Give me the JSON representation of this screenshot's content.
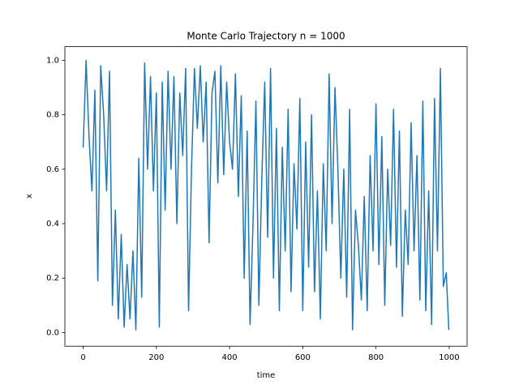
{
  "chart_data": {
    "type": "line",
    "title": "Monte Carlo Trajectory n = 1000",
    "x_label": "time",
    "y_label": "x",
    "x": [
      0,
      8,
      16,
      24,
      32,
      40,
      48,
      56,
      64,
      72,
      80,
      88,
      96,
      104,
      112,
      120,
      128,
      136,
      144,
      152,
      160,
      168,
      176,
      184,
      192,
      200,
      208,
      216,
      224,
      232,
      240,
      248,
      256,
      264,
      272,
      280,
      288,
      296,
      304,
      312,
      320,
      328,
      336,
      344,
      352,
      360,
      368,
      376,
      384,
      392,
      400,
      408,
      416,
      424,
      432,
      440,
      448,
      456,
      464,
      472,
      480,
      488,
      496,
      504,
      512,
      520,
      528,
      536,
      544,
      552,
      560,
      568,
      576,
      584,
      592,
      600,
      608,
      616,
      624,
      632,
      640,
      648,
      656,
      664,
      672,
      680,
      688,
      696,
      704,
      712,
      720,
      728,
      736,
      744,
      752,
      760,
      768,
      776,
      784,
      792,
      800,
      808,
      816,
      824,
      832,
      840,
      848,
      856,
      864,
      872,
      880,
      888,
      896,
      904,
      912,
      920,
      928,
      936,
      944,
      952,
      960,
      968,
      976,
      984,
      992,
      999
    ],
    "series": [
      {
        "color": "#1f77b4",
        "values": [
          0.68,
          1.0,
          0.72,
          0.52,
          0.89,
          0.19,
          0.98,
          0.8,
          0.52,
          0.96,
          0.1,
          0.45,
          0.05,
          0.36,
          0.02,
          0.25,
          0.05,
          0.3,
          0.01,
          0.64,
          0.13,
          0.99,
          0.6,
          0.94,
          0.52,
          0.88,
          0.02,
          0.92,
          0.45,
          0.96,
          0.6,
          0.94,
          0.4,
          0.88,
          0.65,
          0.97,
          0.08,
          0.6,
          0.97,
          0.75,
          0.98,
          0.7,
          0.92,
          0.33,
          0.88,
          0.96,
          0.55,
          0.98,
          0.58,
          0.92,
          0.7,
          0.6,
          0.95,
          0.5,
          0.87,
          0.2,
          0.74,
          0.03,
          0.4,
          0.85,
          0.1,
          0.56,
          0.92,
          0.35,
          0.97,
          0.2,
          0.75,
          0.08,
          0.68,
          0.3,
          0.82,
          0.15,
          0.62,
          0.38,
          0.86,
          0.08,
          0.7,
          0.24,
          0.8,
          0.15,
          0.52,
          0.05,
          0.62,
          0.3,
          0.95,
          0.4,
          0.9,
          0.6,
          0.2,
          0.6,
          0.13,
          0.82,
          0.01,
          0.45,
          0.32,
          0.12,
          0.5,
          0.08,
          0.65,
          0.3,
          0.84,
          0.25,
          0.72,
          0.1,
          0.6,
          0.32,
          0.82,
          0.24,
          0.74,
          0.06,
          0.45,
          0.25,
          0.77,
          0.3,
          0.65,
          0.12,
          0.85,
          0.08,
          0.52,
          0.03,
          0.86,
          0.3,
          0.97,
          0.17,
          0.22,
          0.01
        ]
      }
    ],
    "xlim": [
      -49.95,
      1048.95
    ],
    "ylim": [
      -0.05,
      1.05
    ],
    "xticks": [
      0,
      200,
      400,
      600,
      800,
      1000
    ],
    "yticks": [
      {
        "value": 0,
        "label": "0.0"
      },
      {
        "value": 0.2,
        "label": "0.2"
      },
      {
        "value": 0.4,
        "label": "0.4"
      },
      {
        "value": 0.6,
        "label": "0.6"
      },
      {
        "value": 0.8,
        "label": "0.8"
      },
      {
        "value": 1,
        "label": "1.0"
      }
    ]
  }
}
